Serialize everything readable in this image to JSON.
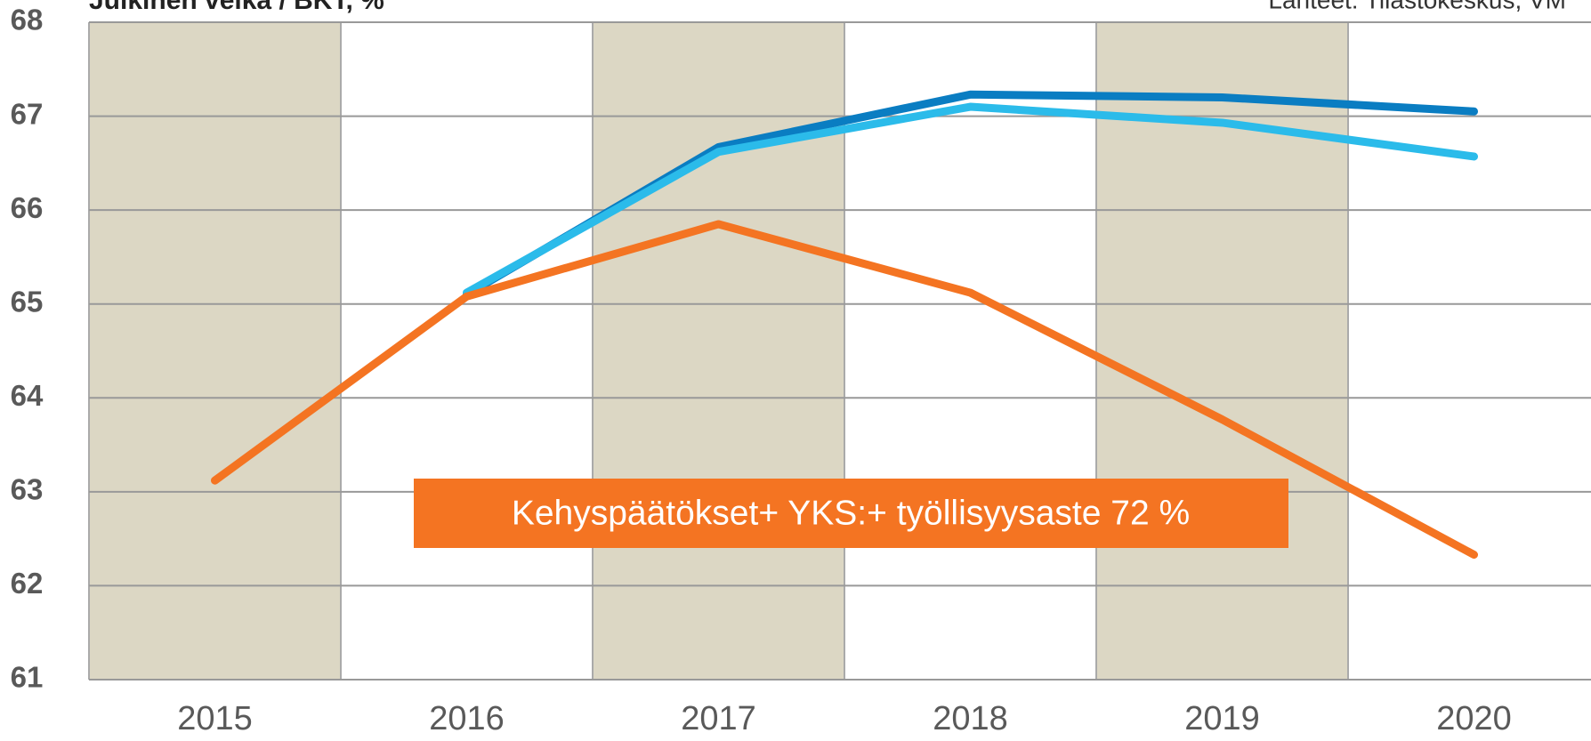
{
  "chart_data": {
    "type": "line",
    "title": "Julkinen velka / BKT, %",
    "source": "Lähteet: Tilastokeskus, VM",
    "annotation": "Kehyspäätökset+ YKS:+ työllisyysaste 72 %",
    "categories": [
      "2015",
      "2016",
      "2017",
      "2018",
      "2019",
      "2020"
    ],
    "series": [
      {
        "color": "#0a7dc2",
        "values": [
          null,
          65.1,
          66.67,
          67.23,
          67.2,
          67.05
        ]
      },
      {
        "color": "#2bbbea",
        "values": [
          null,
          65.12,
          66.62,
          67.1,
          66.93,
          66.57
        ]
      },
      {
        "color": "#f47422",
        "values": [
          63.12,
          65.08,
          65.85,
          65.12,
          63.77,
          62.33
        ]
      }
    ],
    "ylim": [
      61,
      68
    ],
    "yticks": [
      61,
      62,
      63,
      64,
      65,
      66,
      67,
      68
    ],
    "grid": true,
    "band_color": "#dcd7c4"
  }
}
